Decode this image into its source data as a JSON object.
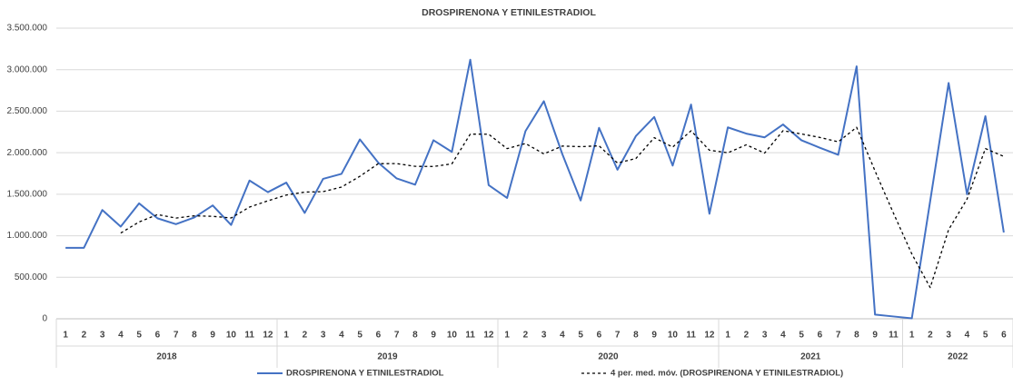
{
  "chart_data": {
    "type": "line",
    "title": "DROSPIRENONA Y ETINILESTRADIOL",
    "categories": [
      "1",
      "2",
      "3",
      "4",
      "5",
      "6",
      "7",
      "8",
      "9",
      "10",
      "11",
      "12",
      "1",
      "2",
      "3",
      "4",
      "5",
      "6",
      "7",
      "8",
      "9",
      "10",
      "11",
      "12",
      "1",
      "2",
      "3",
      "4",
      "5",
      "6",
      "7",
      "8",
      "9",
      "10",
      "11",
      "12",
      "1",
      "2",
      "3",
      "4",
      "5",
      "6",
      "7",
      "8",
      "9",
      "11",
      "1",
      "2",
      "3",
      "4",
      "5",
      "6"
    ],
    "years": [
      "2018",
      "2019",
      "2020",
      "2021",
      "2022"
    ],
    "series": [
      {
        "name": "DROSPIRENONA Y ETINILESTRADIOL",
        "color": "#4472c4",
        "dash": "solid",
        "values": [
          855000,
          855000,
          1310000,
          1110000,
          1390000,
          1210000,
          1140000,
          1220000,
          1365000,
          1130000,
          1665000,
          1525000,
          1640000,
          1275000,
          1685000,
          1745000,
          2160000,
          1880000,
          1690000,
          1615000,
          2150000,
          2010000,
          3120000,
          1610000,
          1455000,
          2260000,
          2620000,
          1985000,
          1425000,
          2300000,
          1795000,
          2200000,
          2430000,
          1845000,
          2580000,
          1265000,
          2305000,
          2230000,
          2185000,
          2340000,
          2150000,
          2060000,
          1975000,
          3040000,
          50000,
          28000,
          5000,
          1420000,
          2840000,
          1500000,
          2440000,
          1040000
        ]
      },
      {
        "name": "4 per. med. móv. (DROSPIRENONA Y ETINILESTRADIOL)",
        "color": "#000000",
        "dash": "dashed",
        "values": [
          null,
          null,
          null,
          1033000,
          1166000,
          1255000,
          1213000,
          1240000,
          1234000,
          1214000,
          1345000,
          1421000,
          1490000,
          1526000,
          1531000,
          1586000,
          1716000,
          1868000,
          1869000,
          1836000,
          1834000,
          1866000,
          2224000,
          2223000,
          2049000,
          2111000,
          1986000,
          2080000,
          2073000,
          2083000,
          1876000,
          1930000,
          2181000,
          2068000,
          2264000,
          2030000,
          1999000,
          2095000,
          1996000,
          2265000,
          2226000,
          2184000,
          2131000,
          2306000,
          1781000,
          1273000,
          781000,
          376000,
          1073000,
          1441000,
          2050000,
          1955000
        ]
      }
    ],
    "ylim": [
      0,
      3500000
    ],
    "yticks": [
      0,
      {
        "value": 500000,
        "label": "500.000"
      },
      {
        "value": 1000000,
        "label": "1.000.000"
      },
      {
        "value": 1500000,
        "label": "1.500.000"
      },
      {
        "value": 2000000,
        "label": "2.000.000"
      },
      {
        "value": 2500000,
        "label": "2.500.000"
      },
      {
        "value": 3000000,
        "label": "3.000.000"
      },
      {
        "value": 3500000,
        "label": "3.500.000"
      }
    ],
    "grid": true,
    "legend": "bottom"
  }
}
